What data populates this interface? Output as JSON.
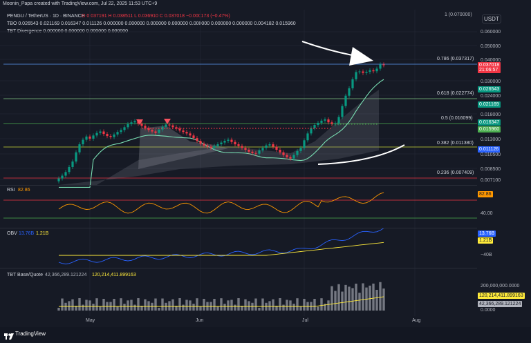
{
  "header": {
    "credit": "Moonin_Papa created with TradingView.com, Jul 22, 2025 11:53 UTC+9",
    "symbol_line": "PENGU / TetherUS · 1D · BINANCE",
    "ohlc": "O 0.037191  H 0.038511  L 0.036910  C 0.037018  −0.000173 (−0.47%)",
    "ohlc_open": "O 0.037191",
    "tbo_line": "TBO 0.026543 0.021169 0.016347 0.011126 0.000000 0.000000 0.000000 0.000000 0.000000 0.000000 0.000000 0.004182 0.015960",
    "tbt_div_line": "TBT Divergence 0.000000 0.000000 0.000000 0.000000",
    "currency": "USDT",
    "top_right_value": "1 (0.070000)"
  },
  "price_axis": {
    "ticks": [
      "0.060000",
      "0.050000",
      "0.040000",
      "0.030000",
      "0.024000",
      "0.018000",
      "0.013000",
      "0.010500",
      "0.008500",
      "0.007100"
    ],
    "labels": [
      {
        "text": "0.037018",
        "sub": "21:06:57",
        "color": "#f23645"
      },
      {
        "text": "0.026543",
        "color": "#089981"
      },
      {
        "text": "0.021169",
        "color": "#089981"
      },
      {
        "text": "0.016347",
        "color": "#089981"
      },
      {
        "text": "0.015960",
        "color": "#4caf50"
      },
      {
        "text": "0.011126",
        "color": "#2962ff"
      }
    ]
  },
  "fib_levels": [
    {
      "label": "0.786 (0.037317)",
      "color": "#5b9cf6"
    },
    {
      "label": "0.618 (0.022774)",
      "color": "#81c784"
    },
    {
      "label": "0.5 (0.016099)",
      "color": "#4caf50"
    },
    {
      "label": "0.382 (0.011380)",
      "color": "#cddc39"
    },
    {
      "label": "0.236 (0.007409)",
      "color": "#f23645"
    }
  ],
  "rsi": {
    "title": "RSI",
    "value": "82.86",
    "ticks": [
      "82.86",
      "40.00"
    ]
  },
  "obv": {
    "title": "OBV",
    "value1": "13.76B",
    "value2": "1.21B",
    "ticks": [
      "13.76B",
      "1.21B",
      "−40B"
    ]
  },
  "volume": {
    "title": "TBT Base/Quote",
    "value1": "42,366,289.121224",
    "value2": "120,214,411.899163",
    "ticks": [
      "200,000,000.0000",
      "120,214,411.899163",
      "42,366,289.121224",
      "0.0000"
    ]
  },
  "x_axis": {
    "labels": [
      "May",
      "Jun",
      "Jul",
      "Aug"
    ]
  },
  "footer": {
    "brand": "TradingView"
  },
  "chart_data": {
    "type": "candlestick",
    "symbol": "PENGU / TetherUS",
    "interval": "1D",
    "last_close": 0.037018,
    "closes": [
      0.0072,
      0.0075,
      0.0079,
      0.0085,
      0.0092,
      0.0105,
      0.0118,
      0.0126,
      0.0132,
      0.0128,
      0.0134,
      0.0139,
      0.0142,
      0.0137,
      0.0133,
      0.0131,
      0.0136,
      0.0141,
      0.0145,
      0.0151,
      0.0158,
      0.0162,
      0.0165,
      0.0159,
      0.0154,
      0.0149,
      0.0145,
      0.0142,
      0.0139,
      0.0146,
      0.0152,
      0.0157,
      0.0155,
      0.0151,
      0.0148,
      0.0144,
      0.0141,
      0.0138,
      0.0134,
      0.0129,
      0.0124,
      0.0119,
      0.0116,
      0.0114,
      0.0112,
      0.0115,
      0.0118,
      0.0121,
      0.0124,
      0.0126,
      0.0122,
      0.0118,
      0.0115,
      0.0112,
      0.0109,
      0.0106,
      0.0104,
      0.0103,
      0.0108,
      0.0112,
      0.0116,
      0.0118,
      0.0114,
      0.0109,
      0.0105,
      0.0101,
      0.0098,
      0.0096,
      0.0101,
      0.0107,
      0.0112,
      0.0125,
      0.0138,
      0.0149,
      0.0156,
      0.0161,
      0.0166,
      0.0169,
      0.0162,
      0.0158,
      0.016,
      0.0175,
      0.0205,
      0.0238,
      0.0265,
      0.0302,
      0.0335,
      0.0338,
      0.0331,
      0.0336,
      0.0344,
      0.0339,
      0.0352,
      0.0374,
      0.037
    ]
  }
}
